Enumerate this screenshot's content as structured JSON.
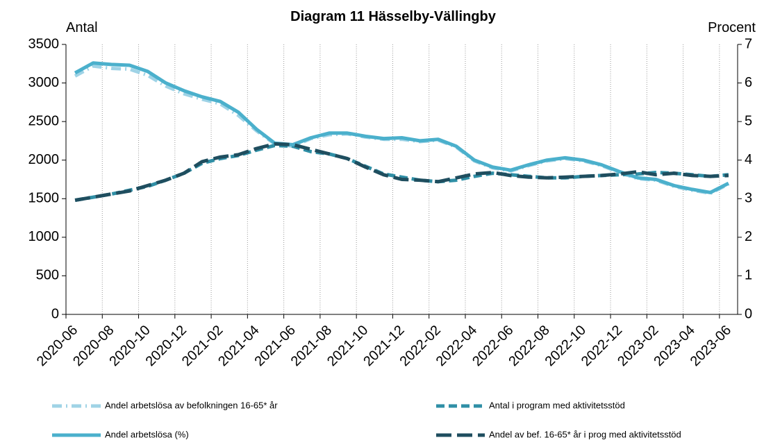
{
  "chart_data": {
    "type": "line",
    "title": "Diagram 11 Hässelby-Vällingby",
    "y_label": "Antal",
    "y2_label": "Procent",
    "categories": [
      "2020-06",
      null,
      "2020-08",
      null,
      "2020-10",
      null,
      "2020-12",
      null,
      "2021-02",
      null,
      "2021-04",
      null,
      "2021-06",
      null,
      "2021-08",
      null,
      "2021-10",
      null,
      "2021-12",
      null,
      "2022-02",
      null,
      "2022-04",
      null,
      "2022-06",
      null,
      "2022-08",
      null,
      "2022-10",
      null,
      "2022-12",
      null,
      "2023-02",
      null,
      "2023-04",
      null,
      "2023-06"
    ],
    "ylim": [
      0,
      3500
    ],
    "yticks": [
      0,
      500,
      1000,
      1500,
      2000,
      2500,
      3000,
      3500
    ],
    "y2lim": [
      0,
      7
    ],
    "y2ticks": [
      0,
      1,
      2,
      3,
      4,
      5,
      6,
      7
    ],
    "grid": "x",
    "series": [
      {
        "name": "Andel arbetslösa av befolkningen 16-65* år",
        "color": "#9fd3e6",
        "line_style": "dashdot",
        "axis": "y2",
        "values": [
          6.18,
          6.44,
          6.38,
          6.36,
          6.2,
          5.92,
          5.72,
          5.58,
          5.46,
          5.16,
          4.76,
          4.42,
          4.36,
          4.56,
          4.66,
          4.68,
          4.6,
          4.54,
          4.54,
          4.48,
          4.52,
          4.34,
          3.98,
          3.8,
          3.72,
          3.86,
          3.98,
          4.04,
          3.98,
          3.86,
          3.68,
          3.52,
          3.48,
          3.32,
          3.22,
          3.14,
          3.38
        ]
      },
      {
        "name": "Antal i program med aktivitetsstöd",
        "color": "#2f8fa6",
        "line_style": "dashed",
        "axis": "y",
        "values": [
          1480,
          1520,
          1560,
          1610,
          1660,
          1740,
          1830,
          1960,
          2020,
          2060,
          2130,
          2190,
          2180,
          2110,
          2080,
          2020,
          1920,
          1820,
          1780,
          1740,
          1720,
          1740,
          1790,
          1830,
          1810,
          1790,
          1770,
          1770,
          1790,
          1800,
          1810,
          1820,
          1840,
          1830,
          1810,
          1790,
          1810
        ]
      },
      {
        "name": "Andel arbetslösa (%)",
        "color": "#4bb0cc",
        "line_style": "solid",
        "axis": "y2",
        "values": [
          6.26,
          6.52,
          6.48,
          6.46,
          6.3,
          6.0,
          5.8,
          5.64,
          5.52,
          5.24,
          4.8,
          4.44,
          4.4,
          4.58,
          4.7,
          4.7,
          4.62,
          4.56,
          4.58,
          4.5,
          4.54,
          4.36,
          4.0,
          3.82,
          3.74,
          3.88,
          4.0,
          4.06,
          4.0,
          3.88,
          3.7,
          3.54,
          3.5,
          3.34,
          3.24,
          3.16,
          3.4
        ]
      },
      {
        "name": "Andel av bef. 16-65* år i prog med aktivitetsstöd",
        "color": "#1f4e5f",
        "line_style": "longdash",
        "axis": "y2",
        "values": [
          2.96,
          3.04,
          3.12,
          3.2,
          3.34,
          3.48,
          3.66,
          3.96,
          4.08,
          4.14,
          4.3,
          4.42,
          4.4,
          4.28,
          4.16,
          4.04,
          3.82,
          3.62,
          3.5,
          3.48,
          3.44,
          3.54,
          3.64,
          3.68,
          3.6,
          3.56,
          3.54,
          3.56,
          3.58,
          3.6,
          3.64,
          3.7,
          3.62,
          3.66,
          3.6,
          3.58,
          3.6
        ]
      }
    ]
  }
}
